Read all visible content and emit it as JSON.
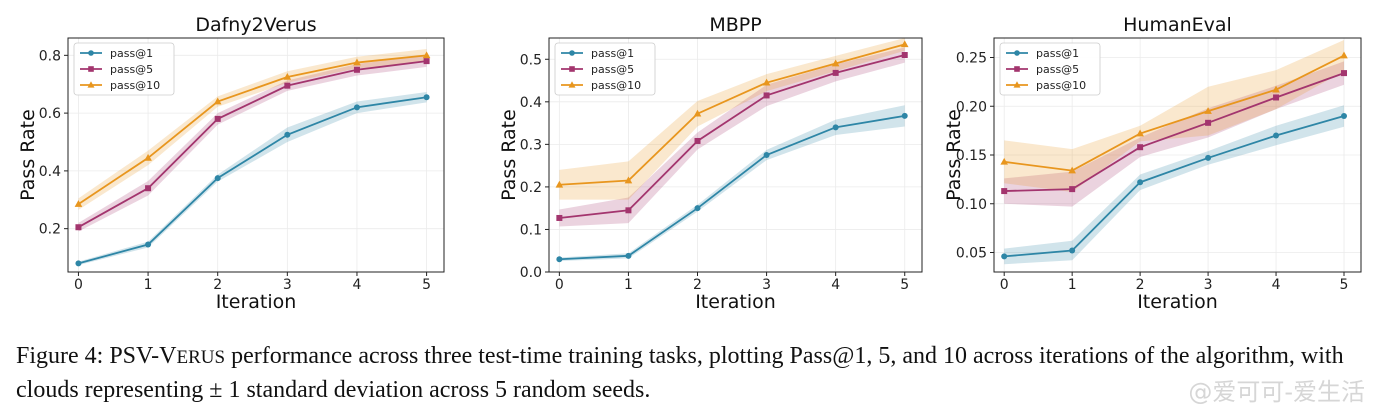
{
  "chart_data": [
    {
      "type": "line",
      "title": "Dafny2Verus",
      "xlabel": "Iteration",
      "ylabel": "Pass Rate",
      "x": [
        0,
        1,
        2,
        3,
        4,
        5
      ],
      "xlim": [
        -0.15,
        5.25
      ],
      "ylim": [
        0.05,
        0.86
      ],
      "yticks": [
        0.2,
        0.4,
        0.6,
        0.8
      ],
      "ytick_labels": [
        "0.2",
        "0.4",
        "0.6",
        "0.8"
      ],
      "legend": "top-left",
      "grid": true,
      "series": [
        {
          "name": "pass@1",
          "color": "#2e86a6",
          "marker": "circle",
          "values": [
            0.08,
            0.145,
            0.375,
            0.525,
            0.62,
            0.655
          ],
          "std": [
            0.006,
            0.01,
            0.012,
            0.025,
            0.02,
            0.018
          ]
        },
        {
          "name": "pass@5",
          "color": "#a3356e",
          "marker": "square",
          "values": [
            0.205,
            0.34,
            0.58,
            0.695,
            0.75,
            0.78
          ],
          "std": [
            0.015,
            0.025,
            0.02,
            0.018,
            0.02,
            0.02
          ]
        },
        {
          "name": "pass@10",
          "color": "#e8961e",
          "marker": "triangle",
          "values": [
            0.285,
            0.445,
            0.64,
            0.725,
            0.775,
            0.8
          ],
          "std": [
            0.02,
            0.025,
            0.018,
            0.02,
            0.02,
            0.022
          ]
        }
      ]
    },
    {
      "type": "line",
      "title": "MBPP",
      "xlabel": "Iteration",
      "ylabel": "Pass Rate",
      "x": [
        0,
        1,
        2,
        3,
        4,
        5
      ],
      "xlim": [
        -0.15,
        5.25
      ],
      "ylim": [
        0.0,
        0.55
      ],
      "yticks": [
        0.0,
        0.1,
        0.2,
        0.3,
        0.4,
        0.5
      ],
      "ytick_labels": [
        "0.0",
        "0.1",
        "0.2",
        "0.3",
        "0.4",
        "0.5"
      ],
      "legend": "top-left",
      "grid": true,
      "series": [
        {
          "name": "pass@1",
          "color": "#2e86a6",
          "marker": "circle",
          "values": [
            0.03,
            0.038,
            0.15,
            0.275,
            0.34,
            0.367
          ],
          "std": [
            0.004,
            0.006,
            0.008,
            0.012,
            0.018,
            0.025
          ]
        },
        {
          "name": "pass@5",
          "color": "#a3356e",
          "marker": "square",
          "values": [
            0.127,
            0.145,
            0.308,
            0.415,
            0.468,
            0.51
          ],
          "std": [
            0.02,
            0.03,
            0.02,
            0.025,
            0.02,
            0.018
          ]
        },
        {
          "name": "pass@10",
          "color": "#e8961e",
          "marker": "triangle",
          "values": [
            0.205,
            0.215,
            0.372,
            0.445,
            0.49,
            0.535
          ],
          "std": [
            0.035,
            0.045,
            0.03,
            0.02,
            0.018,
            0.015
          ]
        }
      ]
    },
    {
      "type": "line",
      "title": "HumanEval",
      "xlabel": "Iteration",
      "ylabel": "Pass Rate",
      "x": [
        0,
        1,
        2,
        3,
        4,
        5
      ],
      "xlim": [
        -0.15,
        5.25
      ],
      "ylim": [
        0.03,
        0.27
      ],
      "yticks": [
        0.05,
        0.1,
        0.15,
        0.2,
        0.25
      ],
      "ytick_labels": [
        "0.05",
        "0.10",
        "0.15",
        "0.20",
        "0.25"
      ],
      "legend": "top-left",
      "grid": true,
      "series": [
        {
          "name": "pass@1",
          "color": "#2e86a6",
          "marker": "circle",
          "values": [
            0.046,
            0.052,
            0.122,
            0.147,
            0.17,
            0.19
          ],
          "std": [
            0.008,
            0.01,
            0.008,
            0.007,
            0.01,
            0.011
          ]
        },
        {
          "name": "pass@5",
          "color": "#a3356e",
          "marker": "square",
          "values": [
            0.113,
            0.115,
            0.158,
            0.183,
            0.209,
            0.234
          ],
          "std": [
            0.013,
            0.018,
            0.01,
            0.015,
            0.012,
            0.012
          ]
        },
        {
          "name": "pass@10",
          "color": "#e8961e",
          "marker": "triangle",
          "values": [
            0.143,
            0.134,
            0.172,
            0.195,
            0.217,
            0.252
          ],
          "std": [
            0.022,
            0.022,
            0.008,
            0.025,
            0.02,
            0.016
          ]
        }
      ]
    }
  ],
  "caption": {
    "prefix": "Figure 4: PSV-V",
    "smallcaps": "ERUS",
    "rest": " performance across three test-time training tasks, plotting Pass@1, 5, and 10 across iterations of the algorithm, with clouds representing ± 1 standard deviation across 5 random seeds."
  },
  "watermark": "@爱可可-爱生活"
}
